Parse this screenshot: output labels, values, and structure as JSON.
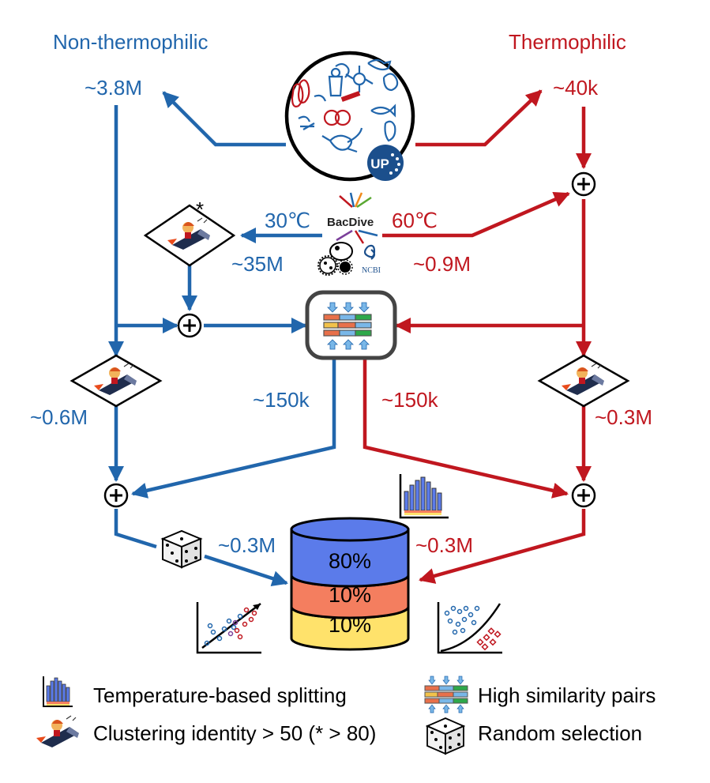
{
  "headers": {
    "left": "Non-thermophilic",
    "right": "Thermophilic"
  },
  "counts": {
    "left_top": "~3.8M",
    "right_top": "~40k",
    "temp_low": "30℃",
    "temp_high": "60℃",
    "left_35m": "~35M",
    "right_09m": "~0.9M",
    "left_150k": "~150k",
    "right_150k": "~150k",
    "left_06m": "~0.6M",
    "right_03m_side": "~0.3M",
    "left_03m_bottom": "~0.3M",
    "right_03m_bottom": "~0.3M"
  },
  "sources": {
    "bacdive": "BacDive",
    "ncbi": "NCBI",
    "uniprot": "UP"
  },
  "cluster_star": "*",
  "split_segments": [
    "80%",
    "10%",
    "10%"
  ],
  "colors": {
    "non_thermophilic": "#2166ac",
    "thermophilic": "#c0171f",
    "train": "#5b7bea",
    "valid": "#f47e5f",
    "test": "#ffe26b"
  },
  "legend": [
    {
      "icon": "bar-histogram-icon",
      "text": "Temperature-based splitting"
    },
    {
      "icon": "similarity-pairs-icon",
      "text": "High similarity pairs"
    },
    {
      "icon": "rocket-mascot-icon",
      "text": "Clustering identity > 50 (* > 80)"
    },
    {
      "icon": "dice-icon",
      "text": "Random selection"
    }
  ]
}
